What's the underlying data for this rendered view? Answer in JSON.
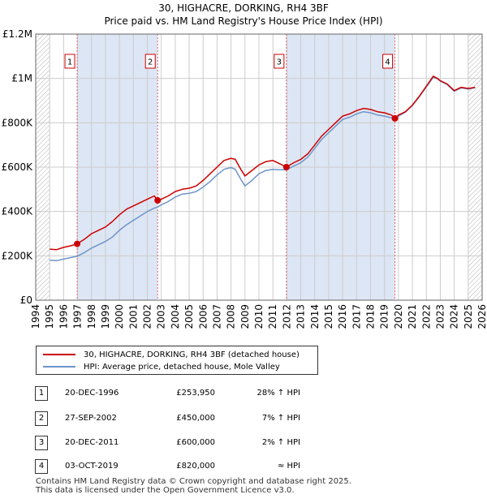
{
  "title_line1": "30, HIGHACRE, DORKING, RH4 3BF",
  "title_line2": "Price paid vs. HM Land Registry's House Price Index (HPI)",
  "colors": {
    "price_line": "#cc0000",
    "hpi_line": "#6f95c9",
    "shade": "#dde6f4",
    "marker_line": "#e06070",
    "grid": "#cccccc"
  },
  "chart_data": {
    "type": "line",
    "xlim": [
      1994,
      2026
    ],
    "ylim": [
      0,
      1200000
    ],
    "y_ticks": [
      {
        "value": 0,
        "label": "£0"
      },
      {
        "value": 200000,
        "label": "£200K"
      },
      {
        "value": 400000,
        "label": "£400K"
      },
      {
        "value": 600000,
        "label": "£600K"
      },
      {
        "value": 800000,
        "label": "£800K"
      },
      {
        "value": 1000000,
        "label": "£1M"
      },
      {
        "value": 1200000,
        "label": "£1.2M"
      }
    ],
    "x_ticks": [
      "1994",
      "1995",
      "1996",
      "1997",
      "1998",
      "1999",
      "2000",
      "2001",
      "2002",
      "2003",
      "2004",
      "2005",
      "2006",
      "2007",
      "2008",
      "2009",
      "2010",
      "2011",
      "2012",
      "2013",
      "2014",
      "2015",
      "2016",
      "2017",
      "2018",
      "2019",
      "2020",
      "2021",
      "2022",
      "2023",
      "2024",
      "2025",
      "2026"
    ],
    "data_start": 1995.0,
    "data_end": 2025.5,
    "shaded_spans": [
      [
        1996.97,
        2002.74
      ],
      [
        2011.97,
        2019.75
      ]
    ],
    "hatched_regions": [
      [
        1994,
        1995.0
      ],
      [
        2025.0,
        2026
      ]
    ],
    "series": [
      {
        "name": "30, HIGHACRE, DORKING, RH4 3BF (detached house)",
        "points": [
          [
            1995.0,
            230000
          ],
          [
            1995.5,
            228000
          ],
          [
            1996.0,
            238000
          ],
          [
            1996.5,
            245000
          ],
          [
            1996.97,
            253950
          ],
          [
            1997.5,
            275000
          ],
          [
            1998.0,
            300000
          ],
          [
            1998.5,
            315000
          ],
          [
            1999.0,
            330000
          ],
          [
            1999.5,
            355000
          ],
          [
            2000.0,
            385000
          ],
          [
            2000.5,
            410000
          ],
          [
            2001.0,
            425000
          ],
          [
            2001.5,
            440000
          ],
          [
            2002.0,
            455000
          ],
          [
            2002.5,
            470000
          ],
          [
            2002.74,
            450000
          ],
          [
            2003.0,
            455000
          ],
          [
            2003.5,
            470000
          ],
          [
            2004.0,
            490000
          ],
          [
            2004.5,
            500000
          ],
          [
            2005.0,
            505000
          ],
          [
            2005.5,
            515000
          ],
          [
            2006.0,
            540000
          ],
          [
            2006.5,
            570000
          ],
          [
            2007.0,
            600000
          ],
          [
            2007.5,
            630000
          ],
          [
            2008.0,
            640000
          ],
          [
            2008.3,
            635000
          ],
          [
            2008.7,
            590000
          ],
          [
            2009.0,
            560000
          ],
          [
            2009.5,
            585000
          ],
          [
            2010.0,
            610000
          ],
          [
            2010.5,
            625000
          ],
          [
            2011.0,
            630000
          ],
          [
            2011.5,
            615000
          ],
          [
            2011.97,
            600000
          ],
          [
            2012.5,
            620000
          ],
          [
            2013.0,
            635000
          ],
          [
            2013.5,
            660000
          ],
          [
            2014.0,
            700000
          ],
          [
            2014.5,
            740000
          ],
          [
            2015.0,
            770000
          ],
          [
            2015.5,
            800000
          ],
          [
            2016.0,
            830000
          ],
          [
            2016.5,
            840000
          ],
          [
            2017.0,
            855000
          ],
          [
            2017.5,
            865000
          ],
          [
            2018.0,
            860000
          ],
          [
            2018.5,
            850000
          ],
          [
            2019.0,
            845000
          ],
          [
            2019.5,
            835000
          ],
          [
            2019.75,
            820000
          ],
          [
            2020.0,
            835000
          ],
          [
            2020.5,
            850000
          ],
          [
            2021.0,
            880000
          ],
          [
            2021.5,
            920000
          ],
          [
            2022.0,
            965000
          ],
          [
            2022.5,
            1010000
          ],
          [
            2022.8,
            1000000
          ],
          [
            2023.0,
            990000
          ],
          [
            2023.5,
            975000
          ],
          [
            2024.0,
            945000
          ],
          [
            2024.5,
            960000
          ],
          [
            2025.0,
            955000
          ],
          [
            2025.5,
            960000
          ]
        ]
      },
      {
        "name": "HPI: Average price, detached house, Mole Valley",
        "points": [
          [
            1995.0,
            180000
          ],
          [
            1995.5,
            178000
          ],
          [
            1996.0,
            185000
          ],
          [
            1996.5,
            192000
          ],
          [
            1996.97,
            198000
          ],
          [
            1997.5,
            215000
          ],
          [
            1998.0,
            235000
          ],
          [
            1998.5,
            250000
          ],
          [
            1999.0,
            265000
          ],
          [
            1999.5,
            285000
          ],
          [
            2000.0,
            315000
          ],
          [
            2000.5,
            340000
          ],
          [
            2001.0,
            360000
          ],
          [
            2001.5,
            380000
          ],
          [
            2002.0,
            400000
          ],
          [
            2002.5,
            415000
          ],
          [
            2002.74,
            420000
          ],
          [
            2003.0,
            430000
          ],
          [
            2003.5,
            445000
          ],
          [
            2004.0,
            465000
          ],
          [
            2004.5,
            478000
          ],
          [
            2005.0,
            482000
          ],
          [
            2005.5,
            490000
          ],
          [
            2006.0,
            510000
          ],
          [
            2006.5,
            535000
          ],
          [
            2007.0,
            565000
          ],
          [
            2007.5,
            590000
          ],
          [
            2008.0,
            598000
          ],
          [
            2008.3,
            590000
          ],
          [
            2008.7,
            545000
          ],
          [
            2009.0,
            515000
          ],
          [
            2009.5,
            540000
          ],
          [
            2010.0,
            570000
          ],
          [
            2010.5,
            585000
          ],
          [
            2011.0,
            590000
          ],
          [
            2011.5,
            588000
          ],
          [
            2011.97,
            588000
          ],
          [
            2012.5,
            605000
          ],
          [
            2013.0,
            620000
          ],
          [
            2013.5,
            645000
          ],
          [
            2014.0,
            685000
          ],
          [
            2014.5,
            725000
          ],
          [
            2015.0,
            755000
          ],
          [
            2015.5,
            785000
          ],
          [
            2016.0,
            815000
          ],
          [
            2016.5,
            825000
          ],
          [
            2017.0,
            840000
          ],
          [
            2017.5,
            850000
          ],
          [
            2018.0,
            845000
          ],
          [
            2018.5,
            835000
          ],
          [
            2019.0,
            830000
          ],
          [
            2019.5,
            822000
          ],
          [
            2019.75,
            820000
          ],
          [
            2020.0,
            830000
          ],
          [
            2020.5,
            848000
          ],
          [
            2021.0,
            878000
          ],
          [
            2021.5,
            918000
          ],
          [
            2022.0,
            962000
          ],
          [
            2022.5,
            1005000
          ],
          [
            2022.8,
            998000
          ],
          [
            2023.0,
            988000
          ],
          [
            2023.5,
            972000
          ],
          [
            2024.0,
            942000
          ],
          [
            2024.5,
            957000
          ],
          [
            2025.0,
            952000
          ],
          [
            2025.5,
            958000
          ]
        ]
      }
    ],
    "sales": [
      {
        "id": "1",
        "x": 1996.97,
        "y": 253950
      },
      {
        "id": "2",
        "x": 2002.74,
        "y": 450000
      },
      {
        "id": "3",
        "x": 2011.97,
        "y": 600000
      },
      {
        "id": "4",
        "x": 2019.75,
        "y": 820000
      }
    ]
  },
  "legend": {
    "price_label": "30, HIGHACRE, DORKING, RH4 3BF (detached house)",
    "hpi_label": "HPI: Average price, detached house, Mole Valley"
  },
  "transactions": [
    {
      "id": "1",
      "date": "20-DEC-1996",
      "price": "£253,950",
      "relation": "28% ↑ HPI"
    },
    {
      "id": "2",
      "date": "27-SEP-2002",
      "price": "£450,000",
      "relation": "7% ↑ HPI"
    },
    {
      "id": "3",
      "date": "20-DEC-2011",
      "price": "£600,000",
      "relation": "2% ↑ HPI"
    },
    {
      "id": "4",
      "date": "03-OCT-2019",
      "price": "£820,000",
      "relation": "≈ HPI"
    }
  ],
  "footer": {
    "line1": "Contains HM Land Registry data © Crown copyright and database right 2025.",
    "line2": "This data is licensed under the Open Government Licence v3.0."
  }
}
